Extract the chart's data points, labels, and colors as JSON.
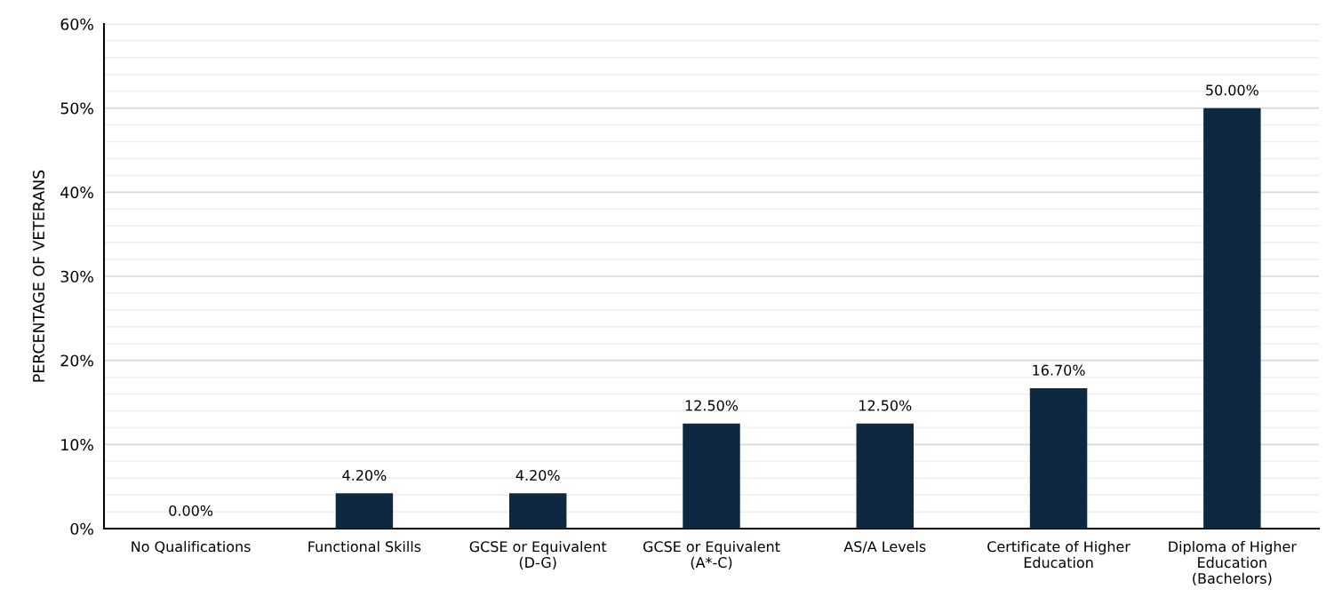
{
  "chart_data": {
    "type": "bar",
    "ylabel": "PERCENTAGE OF VETERANS",
    "categories": [
      "No Qualifications",
      "Functional Skills",
      "GCSE or Equivalent\n(D-G)",
      "GCSE or Equivalent\n(A*-C)",
      "AS/A Levels",
      "Certificate of Higher\nEducation",
      "Diploma of Higher\nEducation\n(Bachelors)"
    ],
    "values": [
      0,
      4.2,
      4.2,
      12.5,
      12.5,
      16.7,
      50
    ],
    "value_labels": [
      "0.00%",
      "4.20%",
      "4.20%",
      "12.50%",
      "12.50%",
      "16.70%",
      "50.00%"
    ],
    "color": "#0f2841",
    "ylim": [
      0,
      60
    ],
    "yticks": [
      {
        "value": 0,
        "label": "0%"
      },
      {
        "value": 10,
        "label": "10%"
      },
      {
        "value": 20,
        "label": "20%"
      },
      {
        "value": 30,
        "label": "30%"
      },
      {
        "value": 40,
        "label": "40%"
      },
      {
        "value": 50,
        "label": "50%"
      },
      {
        "value": 60,
        "label": "60%"
      }
    ],
    "grid": "y"
  }
}
